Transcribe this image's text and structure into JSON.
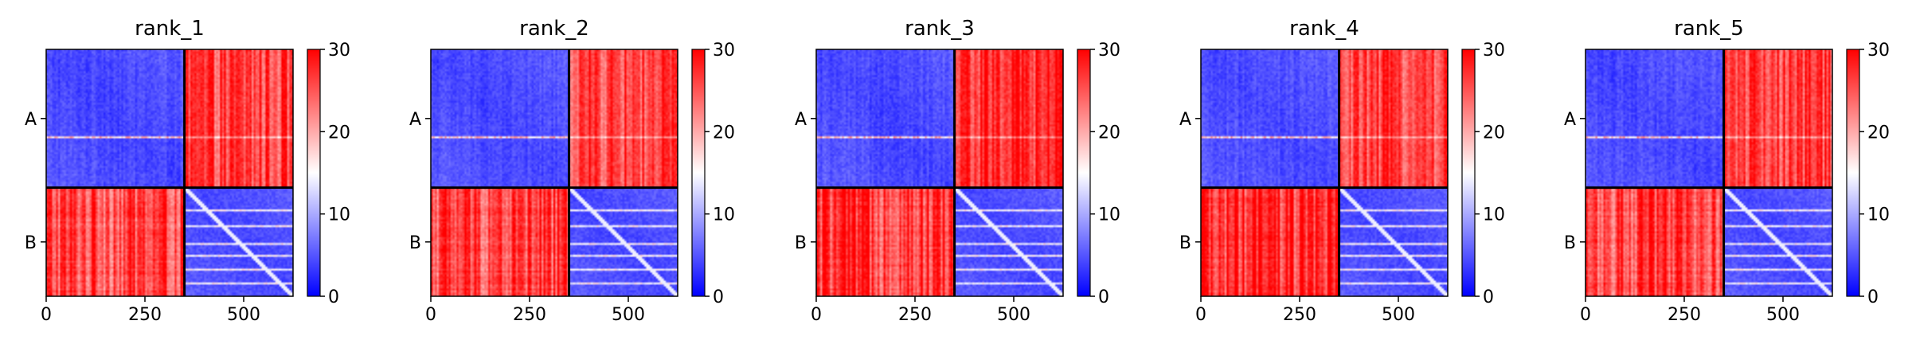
{
  "figure": {
    "panel_count": 5
  },
  "chart_data": [
    {
      "type": "heatmap",
      "title": "rank_1",
      "xticks": [
        "0",
        "250",
        "500"
      ],
      "xtick_values": [
        0,
        250,
        500
      ],
      "yticks": [
        "A",
        "B"
      ],
      "colorbar": {
        "ticks": [
          "0",
          "10",
          "20",
          "30"
        ],
        "tick_values": [
          0,
          10,
          20,
          30
        ],
        "range": [
          0,
          30
        ],
        "colormap": "bwr"
      },
      "matrix_size": 625,
      "chain_boundary": 350,
      "chains": [
        "A",
        "B"
      ],
      "block_means": {
        "AA": 4,
        "AB": 26,
        "BA": 26,
        "BB": 4
      },
      "colors": {
        "low": "#0000ff",
        "mid": "#ffffff",
        "high": "#ff0000"
      }
    },
    {
      "type": "heatmap",
      "title": "rank_2",
      "xticks": [
        "0",
        "250",
        "500"
      ],
      "xtick_values": [
        0,
        250,
        500
      ],
      "yticks": [
        "A",
        "B"
      ],
      "colorbar": {
        "ticks": [
          "0",
          "10",
          "20",
          "30"
        ],
        "tick_values": [
          0,
          10,
          20,
          30
        ],
        "range": [
          0,
          30
        ],
        "colormap": "bwr"
      },
      "matrix_size": 625,
      "chain_boundary": 350,
      "chains": [
        "A",
        "B"
      ],
      "block_means": {
        "AA": 4,
        "AB": 26,
        "BA": 26,
        "BB": 4
      },
      "colors": {
        "low": "#0000ff",
        "mid": "#ffffff",
        "high": "#ff0000"
      }
    },
    {
      "type": "heatmap",
      "title": "rank_3",
      "xticks": [
        "0",
        "250",
        "500"
      ],
      "xtick_values": [
        0,
        250,
        500
      ],
      "yticks": [
        "A",
        "B"
      ],
      "colorbar": {
        "ticks": [
          "0",
          "10",
          "20",
          "30"
        ],
        "tick_values": [
          0,
          10,
          20,
          30
        ],
        "range": [
          0,
          30
        ],
        "colormap": "bwr"
      },
      "matrix_size": 625,
      "chain_boundary": 350,
      "chains": [
        "A",
        "B"
      ],
      "block_means": {
        "AA": 4,
        "AB": 27,
        "BA": 27,
        "BB": 4
      },
      "colors": {
        "low": "#0000ff",
        "mid": "#ffffff",
        "high": "#ff0000"
      }
    },
    {
      "type": "heatmap",
      "title": "rank_4",
      "xticks": [
        "0",
        "250",
        "500"
      ],
      "xtick_values": [
        0,
        250,
        500
      ],
      "yticks": [
        "A",
        "B"
      ],
      "colorbar": {
        "ticks": [
          "0",
          "10",
          "20",
          "30"
        ],
        "tick_values": [
          0,
          10,
          20,
          30
        ],
        "range": [
          0,
          30
        ],
        "colormap": "bwr"
      },
      "matrix_size": 625,
      "chain_boundary": 350,
      "chains": [
        "A",
        "B"
      ],
      "block_means": {
        "AA": 4,
        "AB": 26,
        "BA": 27,
        "BB": 4
      },
      "colors": {
        "low": "#0000ff",
        "mid": "#ffffff",
        "high": "#ff0000"
      }
    },
    {
      "type": "heatmap",
      "title": "rank_5",
      "xticks": [
        "0",
        "250",
        "500"
      ],
      "xtick_values": [
        0,
        250,
        500
      ],
      "yticks": [
        "A",
        "B"
      ],
      "colorbar": {
        "ticks": [
          "0",
          "10",
          "20",
          "30"
        ],
        "tick_values": [
          0,
          10,
          20,
          30
        ],
        "range": [
          0,
          30
        ],
        "colormap": "bwr"
      },
      "matrix_size": 625,
      "chain_boundary": 350,
      "chains": [
        "A",
        "B"
      ],
      "block_means": {
        "AA": 4,
        "AB": 26,
        "BA": 26,
        "BB": 4
      },
      "colors": {
        "low": "#0000ff",
        "mid": "#ffffff",
        "high": "#ff0000"
      }
    }
  ]
}
